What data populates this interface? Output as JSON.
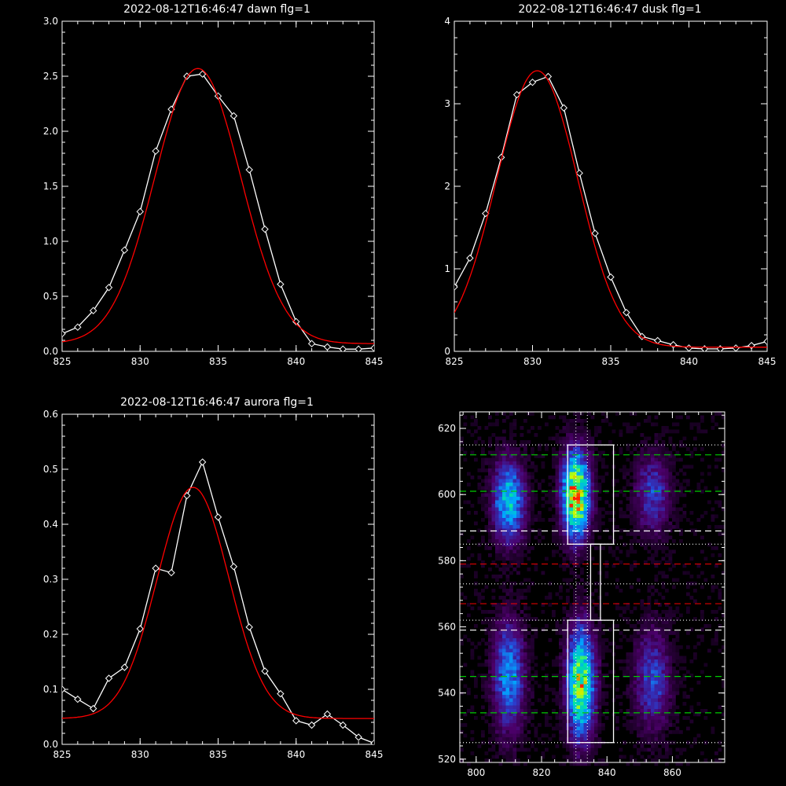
{
  "chart_data": [
    {
      "type": "line",
      "title": "2022-08-12T16:46:47 dawn flg=1",
      "xlim": [
        825,
        845
      ],
      "ylim": [
        0,
        3.0
      ],
      "xticks": [
        825,
        830,
        835,
        840,
        845
      ],
      "yticks": [
        0.0,
        0.5,
        1.0,
        1.5,
        2.0,
        2.5,
        3.0
      ],
      "ytick_labels": [
        "0.0",
        "0.5",
        "1.0",
        "1.5",
        "2.0",
        "2.5",
        "3.0"
      ],
      "series": [
        {
          "color": "#ffffff",
          "marker": "diamond",
          "x": [
            825,
            826,
            827,
            828,
            829,
            830,
            831,
            832,
            833,
            834,
            835,
            836,
            837,
            838,
            839,
            840,
            841,
            842,
            843,
            844,
            845
          ],
          "y": [
            0.16,
            0.22,
            0.37,
            0.58,
            0.92,
            1.27,
            1.82,
            2.2,
            2.5,
            2.52,
            2.32,
            2.14,
            1.65,
            1.11,
            0.61,
            0.27,
            0.07,
            0.04,
            0.02,
            0.02,
            0.03
          ]
        },
        {
          "color": "#ff0000",
          "model": "gaussian",
          "amp": 2.5,
          "center": 833.7,
          "sigma": 2.75,
          "offset": 0.07
        }
      ]
    },
    {
      "type": "line",
      "title": "2022-08-12T16:46:47 dusk flg=1",
      "xlim": [
        825,
        845
      ],
      "ylim": [
        0,
        4
      ],
      "xticks": [
        825,
        830,
        835,
        840,
        845
      ],
      "yticks": [
        0,
        1,
        2,
        3,
        4
      ],
      "ytick_labels": [
        "0",
        "1",
        "2",
        "3",
        "4"
      ],
      "series": [
        {
          "color": "#ffffff",
          "marker": "diamond",
          "x": [
            825,
            826,
            827,
            828,
            829,
            830,
            831,
            832,
            833,
            834,
            835,
            836,
            837,
            838,
            839,
            840,
            841,
            842,
            843,
            844,
            845
          ],
          "y": [
            0.78,
            1.13,
            1.67,
            2.35,
            3.11,
            3.26,
            3.33,
            2.95,
            2.16,
            1.43,
            0.9,
            0.47,
            0.18,
            0.13,
            0.08,
            0.04,
            0.03,
            0.03,
            0.04,
            0.07,
            0.12
          ]
        },
        {
          "color": "#ff0000",
          "model": "gaussian",
          "amp": 3.35,
          "center": 830.3,
          "sigma": 2.6,
          "offset": 0.05
        }
      ]
    },
    {
      "type": "line",
      "title": "2022-08-12T16:46:47 aurora flg=1",
      "xlim": [
        825,
        845
      ],
      "ylim": [
        0,
        0.6
      ],
      "xticks": [
        825,
        830,
        835,
        840,
        845
      ],
      "yticks": [
        0.0,
        0.1,
        0.2,
        0.3,
        0.4,
        0.5,
        0.6
      ],
      "ytick_labels": [
        "0.0",
        "0.1",
        "0.2",
        "0.3",
        "0.4",
        "0.5",
        "0.6"
      ],
      "series": [
        {
          "color": "#ffffff",
          "marker": "diamond",
          "x": [
            825,
            826,
            827,
            828,
            829,
            830,
            831,
            832,
            833,
            834,
            835,
            836,
            837,
            838,
            839,
            840,
            841,
            842,
            843,
            844,
            845
          ],
          "y": [
            0.1,
            0.082,
            0.065,
            0.12,
            0.14,
            0.21,
            0.32,
            0.312,
            0.452,
            0.513,
            0.413,
            0.323,
            0.213,
            0.133,
            0.092,
            0.043,
            0.035,
            0.055,
            0.035,
            0.013,
            0.002
          ]
        },
        {
          "color": "#ff0000",
          "model": "gaussian",
          "amp": 0.42,
          "center": 833.4,
          "sigma": 2.3,
          "offset": 0.047
        }
      ]
    },
    {
      "type": "heatmap",
      "xlim": [
        795,
        876
      ],
      "ylim": [
        519,
        625
      ],
      "xticks": [
        800,
        820,
        840,
        860
      ],
      "yticks": [
        520,
        540,
        560,
        580,
        600,
        620
      ],
      "colormap": [
        "#000000",
        "#4b0069",
        "#2a3fd0",
        "#00a8ff",
        "#00e6a0",
        "#c8ff00",
        "#ff2000"
      ],
      "blobs": [
        {
          "x": 810,
          "y": 598,
          "sx": 3.2,
          "sy": 8,
          "amp": 0.55
        },
        {
          "x": 830.5,
          "y": 600,
          "sx": 2.8,
          "sy": 8.5,
          "amp": 0.92
        },
        {
          "x": 854,
          "y": 600,
          "sx": 3.6,
          "sy": 8,
          "amp": 0.28
        },
        {
          "x": 810,
          "y": 545,
          "sx": 3.2,
          "sy": 11,
          "amp": 0.42
        },
        {
          "x": 832,
          "y": 543,
          "sx": 2.8,
          "sy": 11,
          "amp": 0.78
        },
        {
          "x": 854,
          "y": 544,
          "sx": 3.6,
          "sy": 10,
          "amp": 0.3
        }
      ],
      "hlines": [
        {
          "y": 612,
          "color": "#00cc00",
          "style": "dashed"
        },
        {
          "y": 601,
          "color": "#00cc00",
          "style": "dashed"
        },
        {
          "y": 589,
          "color": "#ffffff",
          "style": "dashed"
        },
        {
          "y": 579,
          "color": "#dd0000",
          "style": "dashed"
        },
        {
          "y": 567,
          "color": "#dd0000",
          "style": "dashed"
        },
        {
          "y": 559,
          "color": "#ffffff",
          "style": "dashed"
        },
        {
          "y": 545,
          "color": "#00cc00",
          "style": "dashed"
        },
        {
          "y": 534,
          "color": "#00cc00",
          "style": "dashed"
        },
        {
          "y": 615,
          "color": "#ffffff",
          "style": "dotted"
        },
        {
          "y": 585,
          "color": "#ffffff",
          "style": "dotted"
        },
        {
          "y": 573,
          "color": "#ffffff",
          "style": "dotted"
        },
        {
          "y": 562,
          "color": "#ffffff",
          "style": "dotted"
        },
        {
          "y": 525,
          "color": "#ffffff",
          "style": "dotted"
        }
      ],
      "vlines": [
        {
          "x": 830.5,
          "color": "#ffffff",
          "style": "dotted"
        },
        {
          "x": 834,
          "color": "#ffffff",
          "style": "dotted"
        }
      ],
      "boxes": [
        {
          "x0": 828,
          "x1": 842,
          "y0": 585,
          "y1": 615
        },
        {
          "x0": 835,
          "x1": 838,
          "y0": 562,
          "y1": 585
        },
        {
          "x0": 828,
          "x1": 842,
          "y0": 525,
          "y1": 562
        }
      ]
    }
  ]
}
